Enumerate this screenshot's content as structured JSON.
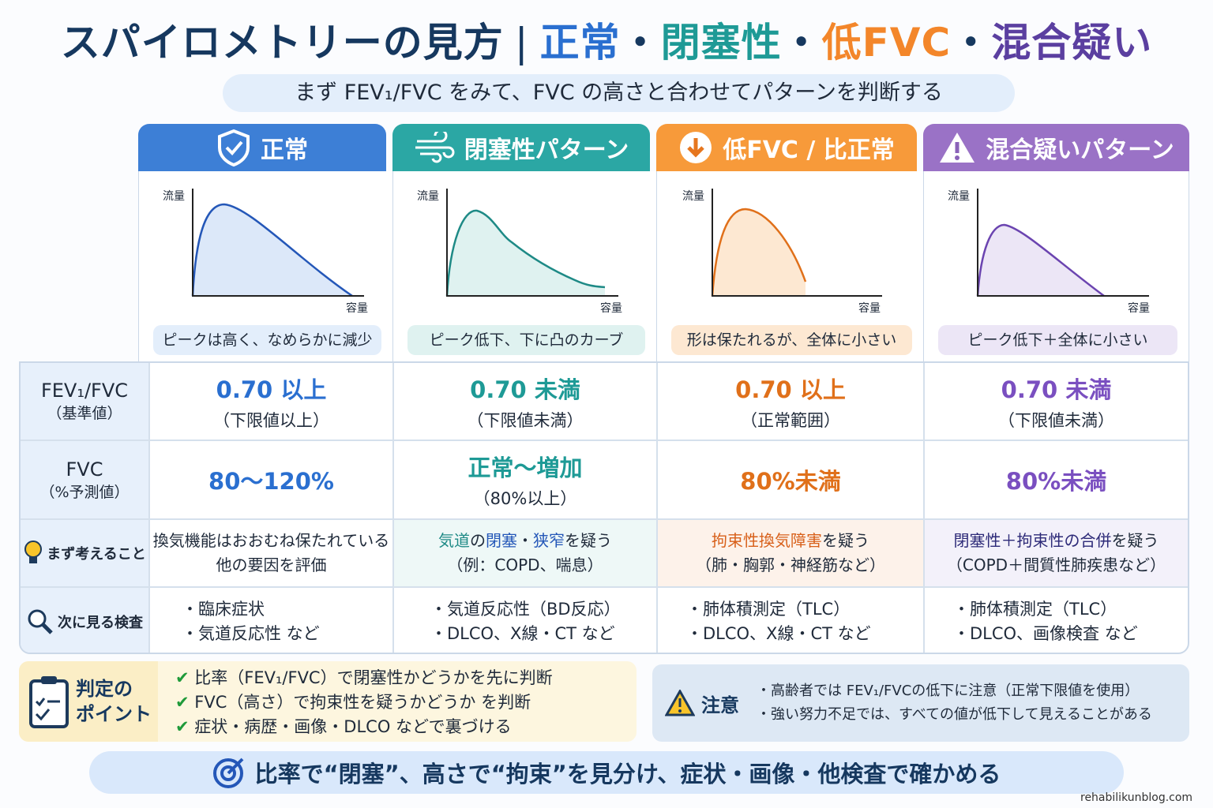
{
  "title": {
    "main": "スパイロメトリーの見方",
    "sep": "|",
    "normal": "正常",
    "dot": "・",
    "obstructive": "閉塞性",
    "low": "低FVC",
    "mixed": "混合疑い"
  },
  "subtitle": "まず FEV₁/FVC をみて、FVC の高さと合わせてパターンを判断する",
  "colors": {
    "normal": "#3d7fd6",
    "obstructive": "#2ba7a4",
    "low": "#f79a3a",
    "mixed": "#9a72c6"
  },
  "columns": [
    {
      "header": "正常",
      "icon": "shield-check-icon",
      "y_axis": "流量",
      "x_axis": "容量",
      "caption": "ピークは高く、なめらかに減少",
      "ratio": "0.70 以上",
      "ratio_note": "（下限値以上）",
      "fvc": "80〜120%",
      "fvc_note": "",
      "think": [
        "換気機能はおおむね保たれている",
        "他の要因を評価"
      ],
      "tests": [
        "・臨床症状",
        "・気道反応性 など"
      ]
    },
    {
      "header": "閉塞性パターン",
      "icon": "wind-icon",
      "y_axis": "流量",
      "x_axis": "容量",
      "caption": "ピーク低下、下に凸のカーブ",
      "ratio": "0.70 未満",
      "ratio_note": "（下限値未満）",
      "fvc": "正常〜増加",
      "fvc_note": "（80%以上）",
      "think_parts": [
        "気道",
        "の",
        "閉塞",
        "・",
        "狭窄",
        "を疑う"
      ],
      "think2": "（例：COPD、喘息）",
      "tests": [
        "・気道反応性（BD反応）",
        "・DLCO、X線・CT など"
      ]
    },
    {
      "header": "低FVC / 比正常",
      "icon": "arrow-down-circle-icon",
      "y_axis": "流量",
      "x_axis": "容量",
      "caption": "形は保たれるが、全体に小さい",
      "ratio": "0.70 以上",
      "ratio_note": "（正常範囲）",
      "fvc": "80%未満",
      "think_parts": [
        "拘束性換気障害",
        "を疑う"
      ],
      "think2": "（肺・胸郭・神経筋など）",
      "tests": [
        "・肺体積測定（TLC）",
        "・DLCO、X線・CT など"
      ]
    },
    {
      "header": "混合疑いパターン",
      "icon": "warning-icon",
      "y_axis": "流量",
      "x_axis": "容量",
      "caption": "ピーク低下＋全体に小さい",
      "ratio": "0.70 未満",
      "ratio_note": "（下限値未満）",
      "fvc": "80%未満",
      "think_parts": [
        "閉塞性＋拘束性の合併",
        "を疑う"
      ],
      "think2": "（COPD＋間質性肺疾患など）",
      "tests": [
        "・肺体積測定（TLC）",
        "・DLCO、画像検査 など"
      ]
    }
  ],
  "rows": {
    "ratio": "FEV₁/FVC",
    "ratio_sub": "（基準値）",
    "fvc": "FVC",
    "fvc_sub": "（%予測値）",
    "think": "まず考えること",
    "tests": "次に見る検査"
  },
  "points": {
    "title1": "判定の",
    "title2": "ポイント",
    "items": [
      "比率（FEV₁/FVC）で閉塞性かどうかを先に判断",
      "FVC（高さ）で拘束性を疑うかどうか を判断",
      "症状・病歴・画像・DLCO などで裏づける"
    ]
  },
  "caution": {
    "title": "注意",
    "items": [
      "・高齢者では FEV₁/FVCの低下に注意（正常下限値を使用）",
      "・強い努力不足では、すべての値が低下して見えることがある"
    ]
  },
  "footer": "比率で“閉塞”、高さで“拘束”を見分け、症状・画像・他検査で確かめる",
  "credit": "rehabilikunblog.com"
}
